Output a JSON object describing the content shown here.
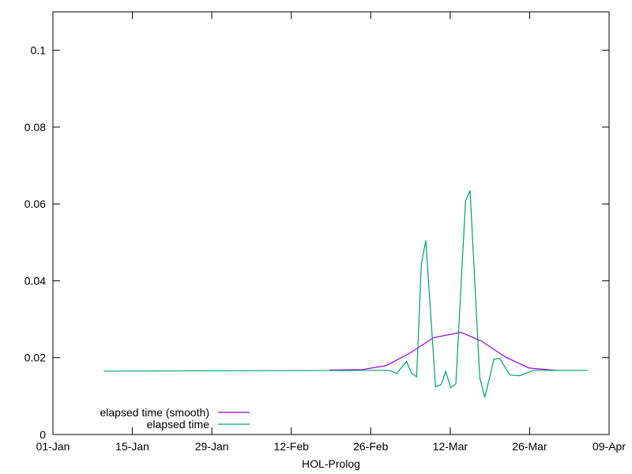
{
  "chart_data": {
    "type": "line",
    "title": "",
    "xlabel": "HOL-Prolog",
    "ylabel": "",
    "ylim": [
      0,
      0.11
    ],
    "xlim": [
      "01-01 00:00",
      "04-09 00:00"
    ],
    "x_ticks": [
      "01-Jan",
      "15-Jan",
      "29-Jan",
      "12-Feb",
      "26-Feb",
      "12-Mar",
      "26-Mar",
      "09-Apr"
    ],
    "x_tick_dates": [
      "01-01",
      "01-15",
      "01-29",
      "02-12",
      "02-26",
      "03-12",
      "03-26",
      "04-09"
    ],
    "y_ticks": [
      "0",
      "0.02",
      "0.04",
      "0.06",
      "0.08",
      "0.1"
    ],
    "y_tick_values": [
      0,
      0.02,
      0.04,
      0.06,
      0.08,
      0.1
    ],
    "grid": false,
    "legend_position": "bottom-left",
    "series": [
      {
        "name": "elapsed time (smooth)",
        "color": "#9400d3",
        "x": [
          "02-18 17:00",
          "02-24 12:00",
          "02-28 17:00",
          "03-04 22:00",
          "03-09 02:00",
          "03-13 22:00",
          "03-17 12:00",
          "03-21 17:00",
          "03-25 22:00",
          "03-30 14:00"
        ],
        "y": [
          0.0168,
          0.0169,
          0.0179,
          0.0212,
          0.0252,
          0.0266,
          0.0243,
          0.0202,
          0.0173,
          0.0167
        ]
      },
      {
        "name": "elapsed time",
        "color": "#009e73",
        "x": [
          "01-09 22:00",
          "02-27 12:00",
          "03-01 05:00",
          "03-02 14:00",
          "03-04 07:00",
          "03-05 05:00",
          "03-06 02:00",
          "03-06 22:00",
          "03-07 17:00",
          "03-09 10:00",
          "03-10 10:00",
          "03-11 05:00",
          "03-12 02:00",
          "03-13 00:00",
          "03-14 17:00",
          "03-15 12:00",
          "03-17 05:00",
          "03-18 02:00",
          "03-19 00:00",
          "03-19 17:00",
          "03-20 17:00",
          "03-22 12:00",
          "03-24 05:00",
          "03-26 17:00",
          "04-05 05:00"
        ],
        "y": [
          0.0165,
          0.0167,
          0.0167,
          0.0159,
          0.019,
          0.0159,
          0.015,
          0.0443,
          0.0505,
          0.0124,
          0.013,
          0.0165,
          0.0122,
          0.0132,
          0.0608,
          0.0635,
          0.0148,
          0.0097,
          0.0151,
          0.0196,
          0.0198,
          0.0155,
          0.0153,
          0.0167,
          0.0167
        ]
      }
    ]
  }
}
